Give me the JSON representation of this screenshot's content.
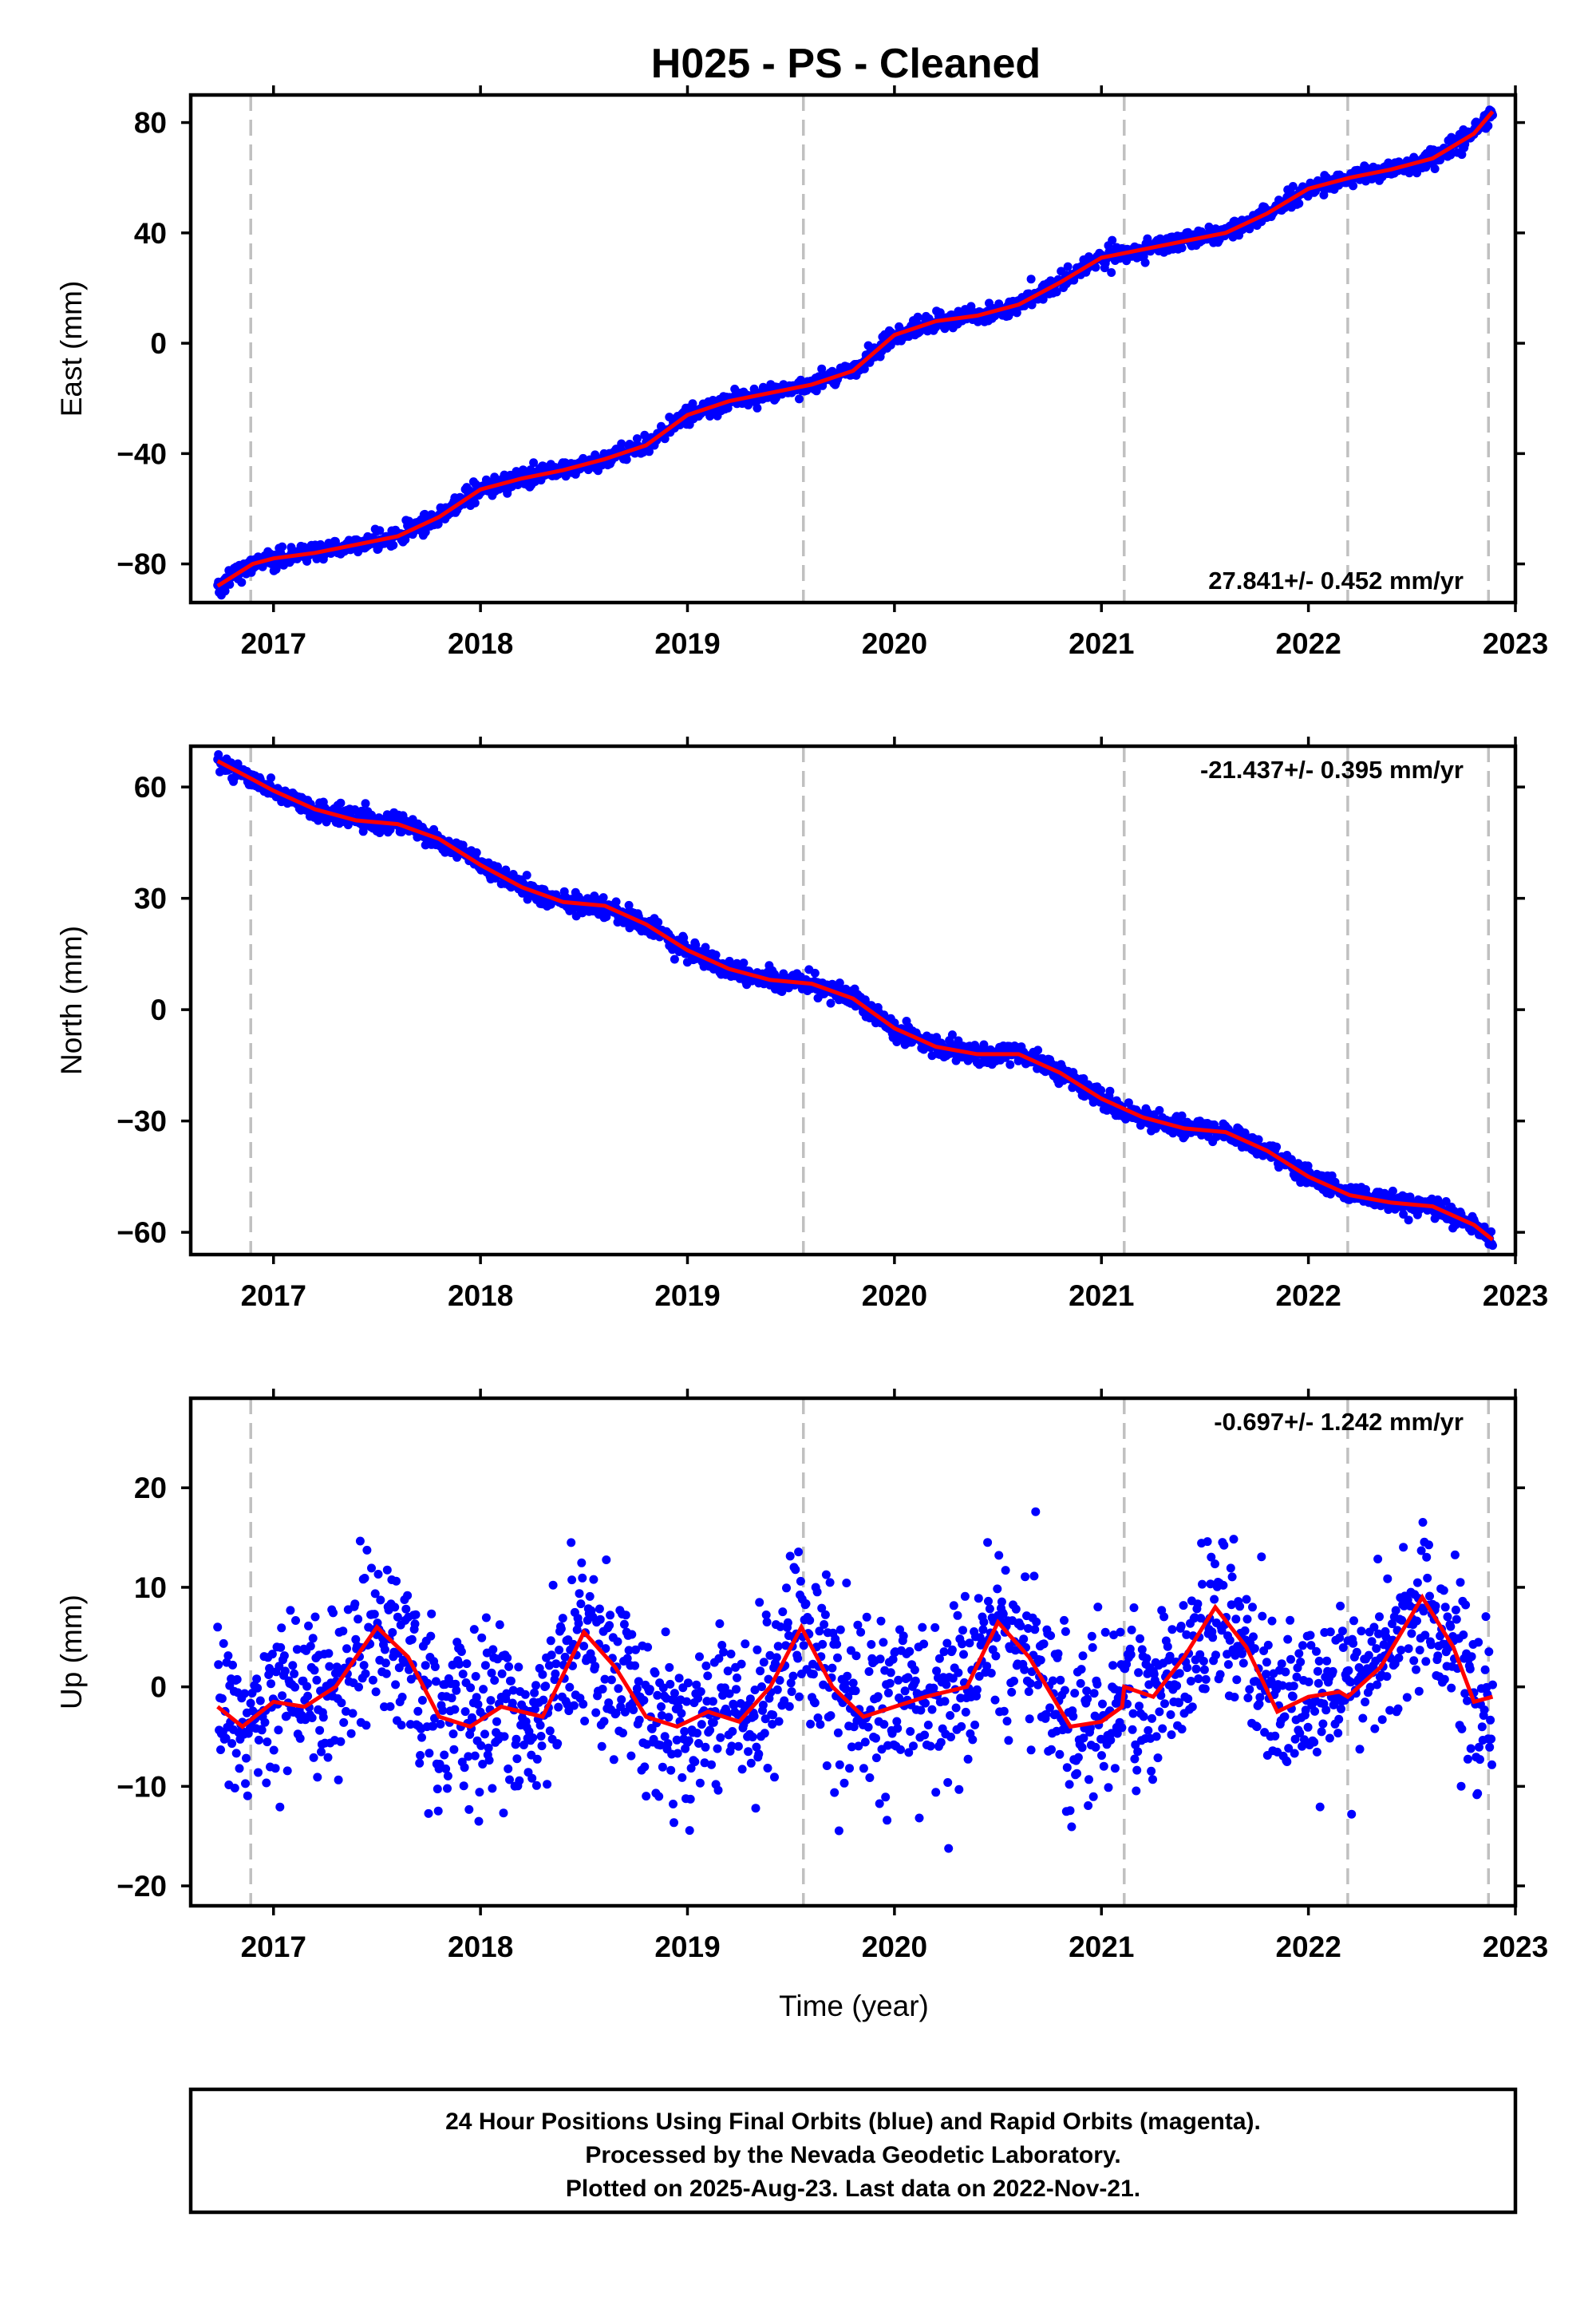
{
  "title": "H025  - PS - Cleaned",
  "colors": {
    "final_orbits": "#0000ff",
    "rapid_orbits": "#ff00ff",
    "trend": "#ff0000",
    "event_lines": "#c0c0c0",
    "frame": "#000000"
  },
  "x_axis": {
    "label": "Time (year)",
    "range": [
      2016.6,
      2023.0
    ],
    "ticks": [
      "2017",
      "2018",
      "2019",
      "2020",
      "2021",
      "2022",
      "2023"
    ]
  },
  "event_lines": [
    2016.89,
    2019.56,
    2021.11,
    2022.19,
    2022.87
  ],
  "chart_data": [
    {
      "type": "scatter",
      "component": "east",
      "ylabel": "East (mm)",
      "ylim": [
        -94,
        90
      ],
      "yticks": [
        "80",
        "40",
        "0",
        "−40",
        "−80"
      ],
      "ytick_values": [
        80,
        40,
        0,
        -40,
        -80
      ],
      "rate_label": "27.841+/- 0.452 mm/yr",
      "rate_position": "bottom-right",
      "point_sigma": 1.6,
      "series": [
        {
          "role": "trend",
          "x": [
            2016.73,
            2016.9,
            2017.0,
            2017.2,
            2017.4,
            2017.6,
            2017.8,
            2018.0,
            2018.2,
            2018.4,
            2018.6,
            2018.8,
            2019.0,
            2019.2,
            2019.4,
            2019.6,
            2019.8,
            2020.0,
            2020.2,
            2020.4,
            2020.6,
            2020.8,
            2021.0,
            2021.2,
            2021.4,
            2021.6,
            2021.8,
            2022.0,
            2022.2,
            2022.4,
            2022.6,
            2022.8,
            2022.89
          ],
          "values": [
            -88,
            -80,
            -78,
            -76,
            -73,
            -70,
            -63,
            -53,
            -49,
            -46,
            -42,
            -37,
            -26,
            -21,
            -18,
            -15,
            -10,
            3,
            8,
            10,
            14,
            22,
            31,
            34,
            37,
            40,
            47,
            56,
            60,
            63,
            67,
            76,
            84
          ]
        }
      ]
    },
    {
      "type": "scatter",
      "component": "north",
      "ylabel": "North (mm)",
      "ylim": [
        -66,
        71
      ],
      "yticks": [
        "60",
        "30",
        "0",
        "−30",
        "−60"
      ],
      "ytick_values": [
        60,
        30,
        0,
        -30,
        -60
      ],
      "rate_label": "-21.437+/- 0.395 mm/yr",
      "rate_position": "top-right",
      "point_sigma": 1.3,
      "series": [
        {
          "role": "trend",
          "x": [
            2016.73,
            2016.9,
            2017.0,
            2017.2,
            2017.4,
            2017.6,
            2017.8,
            2018.0,
            2018.2,
            2018.4,
            2018.6,
            2018.8,
            2019.0,
            2019.2,
            2019.4,
            2019.6,
            2019.8,
            2020.0,
            2020.2,
            2020.4,
            2020.6,
            2020.8,
            2021.0,
            2021.2,
            2021.4,
            2021.6,
            2021.8,
            2022.0,
            2022.2,
            2022.4,
            2022.6,
            2022.8,
            2022.89
          ],
          "values": [
            67,
            62,
            59,
            54,
            51,
            50,
            46,
            39,
            33,
            29,
            28,
            23,
            16,
            11,
            8,
            7,
            3,
            -5,
            -10,
            -12,
            -12,
            -17,
            -24,
            -29,
            -32,
            -33,
            -38,
            -45,
            -50,
            -52,
            -53,
            -58,
            -62
          ]
        }
      ]
    },
    {
      "type": "scatter",
      "component": "up",
      "ylabel": "Up (mm)",
      "ylim": [
        -22,
        29
      ],
      "yticks": [
        "20",
        "10",
        "0",
        "−10",
        "−20"
      ],
      "ytick_values": [
        20,
        10,
        0,
        -10,
        -20
      ],
      "rate_label": "-0.697+/- 1.242 mm/yr",
      "rate_position": "top-right",
      "point_sigma": 4.3,
      "series": [
        {
          "role": "trend",
          "x": [
            2016.73,
            2016.85,
            2017.0,
            2017.15,
            2017.3,
            2017.5,
            2017.65,
            2017.8,
            2017.95,
            2018.1,
            2018.3,
            2018.5,
            2018.65,
            2018.8,
            2018.95,
            2019.1,
            2019.25,
            2019.4,
            2019.55,
            2019.7,
            2019.85,
            2020.0,
            2020.15,
            2020.35,
            2020.5,
            2020.65,
            2020.85,
            2021.0,
            2021.1,
            2021.11,
            2021.25,
            2021.4,
            2021.55,
            2021.7,
            2021.85,
            2022.0,
            2022.15,
            2022.19,
            2022.35,
            2022.55,
            2022.7,
            2022.8,
            2022.89
          ],
          "values": [
            -2,
            -4,
            -1.5,
            -2,
            0,
            6,
            3,
            -3,
            -4,
            -2,
            -3,
            5.5,
            2,
            -3,
            -4,
            -2.5,
            -3.5,
            0,
            6,
            0,
            -3,
            -2,
            -1,
            0,
            6.5,
            3,
            -4,
            -3.5,
            -2,
            0,
            -1,
            3,
            8,
            4,
            -2.5,
            -1,
            -0.5,
            -1,
            2,
            9,
            4,
            -1.5,
            -1
          ]
        }
      ]
    }
  ],
  "footer": {
    "line1": "24 Hour Positions Using Final Orbits (blue) and Rapid Orbits (magenta).",
    "line2": "Processed by the Nevada Geodetic Laboratory.",
    "line3": "Plotted on 2025-Aug-23. Last data on 2022-Nov-21."
  }
}
